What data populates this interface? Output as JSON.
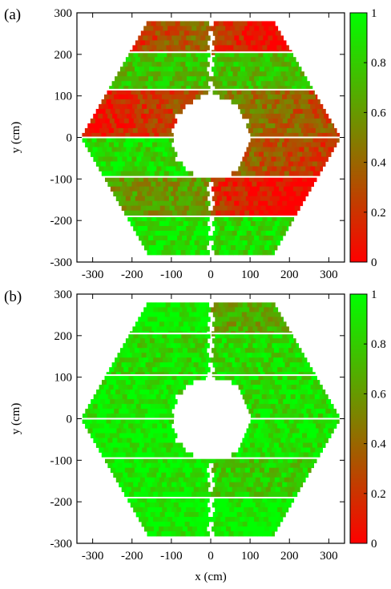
{
  "chart_data": [
    {
      "type": "heatmap",
      "panel_label": "(a)",
      "xlabel": "",
      "ylabel": "y (cm)",
      "xlim": [
        -340,
        340
      ],
      "ylim": [
        -300,
        300
      ],
      "xticks": [
        "-300",
        "-200",
        "-100",
        "0",
        "100",
        "200",
        "300"
      ],
      "yticks": [
        "-300",
        "-200",
        "-100",
        "0",
        "100",
        "200",
        "300"
      ],
      "color_scale": {
        "min": 0,
        "max": 1,
        "low_color": "#ff0000",
        "high_color": "#00ff00",
        "ticks": [
          "0",
          "0.2",
          "0.4",
          "0.6",
          "0.8",
          "1"
        ]
      },
      "detector": {
        "shape": "hexagon",
        "outer_x_at_center": 330,
        "outer_x_at_top": 160,
        "y_extent": 280,
        "hole_radius": 100,
        "gap_x": 5
      },
      "strips": [
        {
          "y": [
            205,
            280
          ],
          "left": 0.45,
          "right": 0.25
        },
        {
          "y": [
            115,
            205
          ],
          "left": 0.75,
          "right": 0.75
        },
        {
          "y": [
            0,
            115
          ],
          "left": 0.35,
          "right": 0.55
        },
        {
          "y": [
            -95,
            0
          ],
          "left": 0.85,
          "right": 0.45
        },
        {
          "y": [
            -190,
            -95
          ],
          "left": 0.6,
          "right": 0.2
        },
        {
          "y": [
            -280,
            -190
          ],
          "left": 0.9,
          "right": 0.85
        }
      ]
    },
    {
      "type": "heatmap",
      "panel_label": "(b)",
      "xlabel": "x (cm)",
      "ylabel": "y (cm)",
      "xlim": [
        -340,
        340
      ],
      "ylim": [
        -300,
        300
      ],
      "xticks": [
        "-300",
        "-200",
        "-100",
        "0",
        "100",
        "200",
        "300"
      ],
      "yticks": [
        "-300",
        "-200",
        "-100",
        "0",
        "100",
        "200",
        "300"
      ],
      "color_scale": {
        "min": 0,
        "max": 1,
        "low_color": "#ff0000",
        "high_color": "#00ff00",
        "ticks": [
          "0",
          "0.2",
          "0.4",
          "0.6",
          "0.8",
          "1"
        ]
      },
      "detector": {
        "shape": "hexagon",
        "outer_x_at_center": 330,
        "outer_x_at_top": 160,
        "y_extent": 280,
        "hole_radius": 100,
        "gap_x": 5
      },
      "strips": [
        {
          "y": [
            205,
            280
          ],
          "left": 0.95,
          "right": 0.65
        },
        {
          "y": [
            105,
            205
          ],
          "left": 0.85,
          "right": 0.85
        },
        {
          "y": [
            0,
            105
          ],
          "left": 0.9,
          "right": 0.85
        },
        {
          "y": [
            -95,
            0
          ],
          "left": 0.93,
          "right": 0.9
        },
        {
          "y": [
            -190,
            -95
          ],
          "left": 0.92,
          "right": 0.8
        },
        {
          "y": [
            -280,
            -190
          ],
          "left": 0.95,
          "right": 0.95
        }
      ]
    }
  ]
}
